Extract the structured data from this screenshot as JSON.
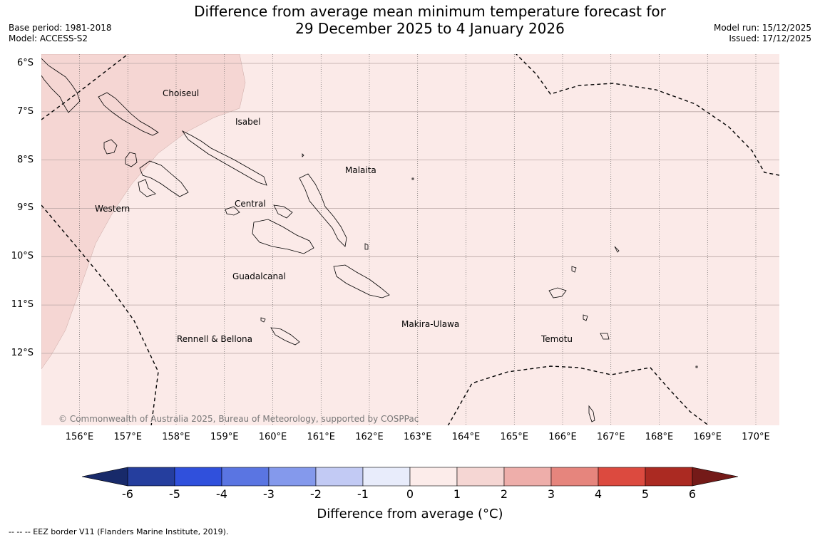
{
  "header": {
    "title_line1": "Difference from average mean minimum temperature forecast for",
    "title_line2": "29 December 2025 to 4 January 2026",
    "base_period": "Base period: 1981-2018",
    "model": "Model: ACCESS-S2",
    "model_run": "Model run: 15/12/2025",
    "issued": "Issued: 17/12/2025"
  },
  "map": {
    "latitudes": [
      "6°S",
      "7°S",
      "8°S",
      "9°S",
      "10°S",
      "11°S",
      "12°S"
    ],
    "longitudes": [
      "156°E",
      "157°E",
      "158°E",
      "159°E",
      "160°E",
      "161°E",
      "162°E",
      "163°E",
      "164°E",
      "165°E",
      "166°E",
      "167°E",
      "168°E",
      "169°E",
      "170°E"
    ],
    "regions": {
      "choiseul": "Choiseul",
      "isabel": "Isabel",
      "malaita": "Malaita",
      "western": "Western",
      "central": "Central",
      "guadalcanal": "Guadalcanal",
      "makira_ulawa": "Makira-Ulawa",
      "rennell_bellona": "Rennell & Bellona",
      "temotu": "Temotu"
    },
    "copyright": "© Commonwealth of Australia 2025, Bureau of Meteorology, supported by COSPPac",
    "fill_colors": {
      "background_class_0_1": "#fbeae8",
      "warm_class_1_2": "#f5d6d3"
    }
  },
  "colorbar": {
    "ticks": [
      "-6",
      "-5",
      "-4",
      "-3",
      "-2",
      "-1",
      "0",
      "1",
      "2",
      "3",
      "4",
      "5",
      "6"
    ],
    "colors": [
      "#253e9e",
      "#3050dc",
      "#5a75e2",
      "#8499ec",
      "#c2caf4",
      "#e8ecfb",
      "#fcecea",
      "#f5d6d3",
      "#eeaeaa",
      "#e6857d",
      "#dc4a3f",
      "#ab2a22"
    ],
    "under_color": "#182a6a",
    "over_color": "#741a18",
    "label": "Difference from average (°C)"
  },
  "footer": {
    "eez_legend": "--  --  -- EEZ border V11 (Flanders Marine Institute, 2019)."
  }
}
